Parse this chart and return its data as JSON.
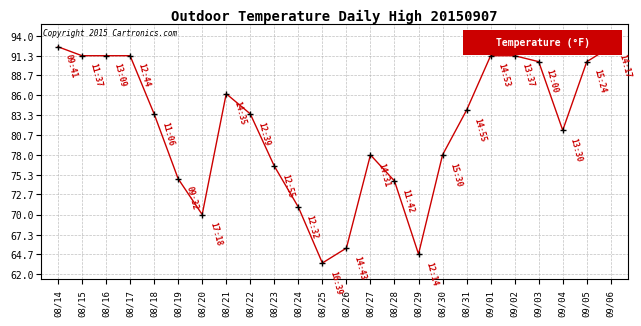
{
  "title": "Outdoor Temperature Daily High 20150907",
  "copyright": "Copyright 2015 Cartronics.com",
  "line_color": "#cc0000",
  "marker_color": "#000000",
  "background_color": "#ffffff",
  "grid_color": "#b0b0b0",
  "dates": [
    "08/14",
    "08/15",
    "08/16",
    "08/17",
    "08/18",
    "08/19",
    "08/20",
    "08/21",
    "08/22",
    "08/23",
    "08/24",
    "08/25",
    "08/26",
    "08/27",
    "08/28",
    "08/29",
    "08/30",
    "08/31",
    "09/01",
    "09/02",
    "09/03",
    "09/04",
    "09/05",
    "09/06"
  ],
  "temps": [
    92.5,
    91.3,
    91.3,
    91.3,
    83.5,
    74.8,
    70.0,
    86.2,
    83.5,
    76.5,
    71.0,
    63.5,
    65.5,
    78.0,
    74.5,
    64.7,
    78.0,
    84.0,
    91.3,
    91.3,
    90.5,
    81.3,
    90.5,
    92.5
  ],
  "time_labels": [
    "09:41",
    "11:37",
    "13:09",
    "12:44",
    "11:06",
    "09:32",
    "17:18",
    "14:35",
    "12:39",
    "12:55",
    "12:32",
    "16:39",
    "14:43",
    "14:31",
    "11:42",
    "12:14",
    "15:30",
    "14:55",
    "14:53",
    "13:37",
    "12:00",
    "13:30",
    "15:24",
    "14:17"
  ],
  "yticks": [
    62.0,
    64.7,
    67.3,
    70.0,
    72.7,
    75.3,
    78.0,
    80.7,
    83.3,
    86.0,
    88.7,
    91.3,
    94.0
  ],
  "ylim": [
    61.3,
    95.5
  ],
  "xlim": [
    -0.7,
    23.7
  ],
  "legend_text": "Temperature (°F)",
  "legend_bg": "#cc0000",
  "legend_fg": "#ffffff"
}
